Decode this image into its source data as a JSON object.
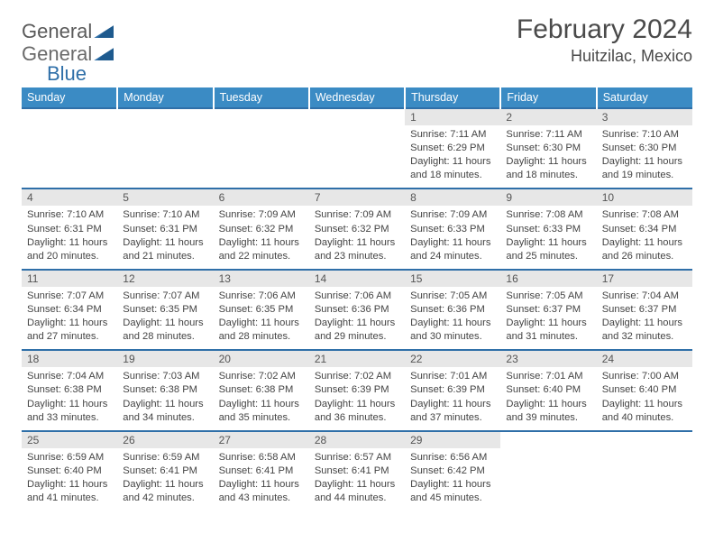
{
  "brand": {
    "part1": "General",
    "part2": "Blue"
  },
  "title": "February 2024",
  "location": "Huitzilac, Mexico",
  "colors": {
    "header_bg": "#3b8bc4",
    "header_text": "#ffffff",
    "accent_rule": "#2f6fa8",
    "daynum_bg": "#e7e7e7",
    "text": "#444444"
  },
  "typography": {
    "title_fontsize": 30,
    "location_fontsize": 18,
    "header_fontsize": 12.5,
    "body_fontsize": 11.2
  },
  "dayNames": [
    "Sunday",
    "Monday",
    "Tuesday",
    "Wednesday",
    "Thursday",
    "Friday",
    "Saturday"
  ],
  "weeks": [
    {
      "nums": [
        "",
        "",
        "",
        "",
        "1",
        "2",
        "3"
      ],
      "cells": [
        "",
        "",
        "",
        "",
        "Sunrise: 7:11 AM\nSunset: 6:29 PM\nDaylight: 11 hours and 18 minutes.",
        "Sunrise: 7:11 AM\nSunset: 6:30 PM\nDaylight: 11 hours and 18 minutes.",
        "Sunrise: 7:10 AM\nSunset: 6:30 PM\nDaylight: 11 hours and 19 minutes."
      ]
    },
    {
      "nums": [
        "4",
        "5",
        "6",
        "7",
        "8",
        "9",
        "10"
      ],
      "cells": [
        "Sunrise: 7:10 AM\nSunset: 6:31 PM\nDaylight: 11 hours and 20 minutes.",
        "Sunrise: 7:10 AM\nSunset: 6:31 PM\nDaylight: 11 hours and 21 minutes.",
        "Sunrise: 7:09 AM\nSunset: 6:32 PM\nDaylight: 11 hours and 22 minutes.",
        "Sunrise: 7:09 AM\nSunset: 6:32 PM\nDaylight: 11 hours and 23 minutes.",
        "Sunrise: 7:09 AM\nSunset: 6:33 PM\nDaylight: 11 hours and 24 minutes.",
        "Sunrise: 7:08 AM\nSunset: 6:33 PM\nDaylight: 11 hours and 25 minutes.",
        "Sunrise: 7:08 AM\nSunset: 6:34 PM\nDaylight: 11 hours and 26 minutes."
      ]
    },
    {
      "nums": [
        "11",
        "12",
        "13",
        "14",
        "15",
        "16",
        "17"
      ],
      "cells": [
        "Sunrise: 7:07 AM\nSunset: 6:34 PM\nDaylight: 11 hours and 27 minutes.",
        "Sunrise: 7:07 AM\nSunset: 6:35 PM\nDaylight: 11 hours and 28 minutes.",
        "Sunrise: 7:06 AM\nSunset: 6:35 PM\nDaylight: 11 hours and 28 minutes.",
        "Sunrise: 7:06 AM\nSunset: 6:36 PM\nDaylight: 11 hours and 29 minutes.",
        "Sunrise: 7:05 AM\nSunset: 6:36 PM\nDaylight: 11 hours and 30 minutes.",
        "Sunrise: 7:05 AM\nSunset: 6:37 PM\nDaylight: 11 hours and 31 minutes.",
        "Sunrise: 7:04 AM\nSunset: 6:37 PM\nDaylight: 11 hours and 32 minutes."
      ]
    },
    {
      "nums": [
        "18",
        "19",
        "20",
        "21",
        "22",
        "23",
        "24"
      ],
      "cells": [
        "Sunrise: 7:04 AM\nSunset: 6:38 PM\nDaylight: 11 hours and 33 minutes.",
        "Sunrise: 7:03 AM\nSunset: 6:38 PM\nDaylight: 11 hours and 34 minutes.",
        "Sunrise: 7:02 AM\nSunset: 6:38 PM\nDaylight: 11 hours and 35 minutes.",
        "Sunrise: 7:02 AM\nSunset: 6:39 PM\nDaylight: 11 hours and 36 minutes.",
        "Sunrise: 7:01 AM\nSunset: 6:39 PM\nDaylight: 11 hours and 37 minutes.",
        "Sunrise: 7:01 AM\nSunset: 6:40 PM\nDaylight: 11 hours and 39 minutes.",
        "Sunrise: 7:00 AM\nSunset: 6:40 PM\nDaylight: 11 hours and 40 minutes."
      ]
    },
    {
      "nums": [
        "25",
        "26",
        "27",
        "28",
        "29",
        "",
        ""
      ],
      "cells": [
        "Sunrise: 6:59 AM\nSunset: 6:40 PM\nDaylight: 11 hours and 41 minutes.",
        "Sunrise: 6:59 AM\nSunset: 6:41 PM\nDaylight: 11 hours and 42 minutes.",
        "Sunrise: 6:58 AM\nSunset: 6:41 PM\nDaylight: 11 hours and 43 minutes.",
        "Sunrise: 6:57 AM\nSunset: 6:41 PM\nDaylight: 11 hours and 44 minutes.",
        "Sunrise: 6:56 AM\nSunset: 6:42 PM\nDaylight: 11 hours and 45 minutes.",
        "",
        ""
      ]
    }
  ]
}
